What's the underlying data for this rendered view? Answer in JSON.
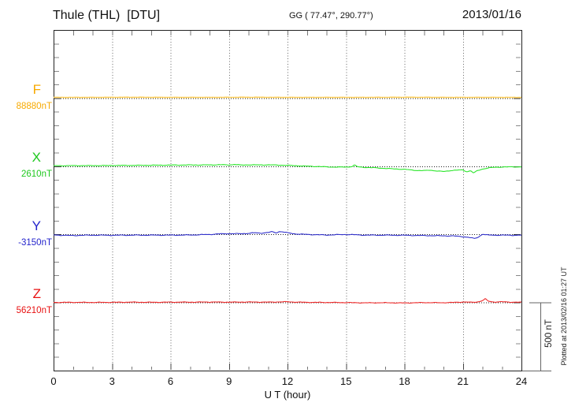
{
  "header": {
    "title": "Thule (THL)  [DTU]",
    "coords": "GG ( 77.47°, 290.77°)",
    "date": "2013/01/16"
  },
  "right_margin": {
    "scale_bar_label": "500 nT",
    "plotted_at": "Plotted at 2013/02/16 01:27 UT"
  },
  "chart_data": {
    "type": "line",
    "title": "Thule (THL) [DTU] magnetogram",
    "xlabel": "U T (hour)",
    "x_range": [
      0,
      24
    ],
    "x_tick_hours": [
      0,
      3,
      6,
      9,
      12,
      15,
      18,
      21,
      24
    ],
    "x_ticks": [
      "0",
      "3",
      "6",
      "9",
      "12",
      "15",
      "18",
      "21",
      "24"
    ],
    "minor_tick_hours": 1,
    "y_tick_nT": 100,
    "row_offset_nT": 500,
    "scale_bar_nT": 500,
    "grid": "dotted vertical lines every 3 h, dotted baseline per channel",
    "legend_position": "left",
    "series": [
      {
        "label": "F",
        "base_label": "88880nT",
        "base_nT": 88880,
        "label_color": "#f7a900",
        "line_color": "#ffd05e",
        "noise_nT": 1.2,
        "x": [
          0,
          2,
          4,
          6,
          8,
          10,
          12,
          14,
          16,
          18,
          20,
          22,
          24
        ],
        "dev_nT": [
          8,
          8,
          9,
          8,
          8,
          9,
          8,
          8,
          8,
          9,
          8,
          8,
          8
        ]
      },
      {
        "label": "X",
        "base_label": "2610nT",
        "base_nT": 2610,
        "label_color": "#1ec81e",
        "line_color": "#2ee62e",
        "noise_nT": 2.5,
        "x": [
          0,
          1,
          2,
          3,
          4,
          5,
          6,
          7,
          8,
          8.5,
          9,
          9.3,
          9.6,
          10,
          10.5,
          11,
          11.5,
          12,
          12.5,
          13,
          13.5,
          14,
          14.5,
          15,
          15.3,
          15.45,
          15.6,
          16,
          16.5,
          17,
          17.5,
          18,
          18.3,
          18.6,
          19,
          19.3,
          19.7,
          20,
          20.3,
          20.6,
          21,
          21.2,
          21.4,
          21.55,
          21.7,
          22,
          22.3,
          22.6,
          23,
          23.5,
          24
        ],
        "dev_nT": [
          6,
          7,
          7,
          8,
          9,
          10,
          11,
          12,
          12,
          14,
          12,
          16,
          11,
          13,
          12,
          13,
          11,
          9,
          6,
          3,
          1,
          -2,
          -4,
          -3,
          0,
          12,
          -2,
          -6,
          -9,
          -13,
          -17,
          -20,
          -24,
          -28,
          -30,
          -26,
          -33,
          -36,
          -30,
          -27,
          -24,
          -38,
          -30,
          -48,
          -32,
          -18,
          -10,
          -5,
          -3,
          -2,
          -2
        ]
      },
      {
        "label": "Y",
        "base_label": "-3150nT",
        "base_nT": -3150,
        "label_color": "#2424cc",
        "line_color": "#3333cc",
        "noise_nT": 3,
        "x": [
          0,
          0.5,
          1,
          1.5,
          2,
          3,
          4,
          5,
          6,
          7,
          8,
          8.5,
          9,
          9.5,
          10,
          10.3,
          10.6,
          11,
          11.2,
          11.4,
          11.6,
          11.8,
          12,
          12.3,
          12.6,
          13,
          13.5,
          14,
          15,
          16,
          17,
          18,
          19,
          20,
          20.5,
          21,
          21.3,
          21.6,
          21.8,
          22,
          22.3,
          23,
          23.5,
          24
        ],
        "dev_nT": [
          -2,
          -4,
          -6,
          -4,
          -3,
          -4,
          -3,
          -3,
          -3,
          -2,
          2,
          6,
          8,
          7,
          10,
          14,
          12,
          16,
          22,
          14,
          24,
          20,
          14,
          8,
          4,
          2,
          0,
          -2,
          2,
          -3,
          -3,
          -4,
          -6,
          -8,
          -9,
          -14,
          -20,
          -28,
          -16,
          4,
          -3,
          -3,
          -4,
          -3
        ]
      },
      {
        "label": "Z",
        "base_label": "56210nT",
        "base_nT": 56210,
        "label_color": "#e81111",
        "line_color": "#ee2b2b",
        "noise_nT": 2.5,
        "x": [
          0,
          1,
          2,
          3,
          4,
          5,
          6,
          7,
          8,
          9,
          10,
          11,
          12,
          12.5,
          13,
          14,
          15,
          16,
          17,
          18,
          19,
          20,
          20.5,
          21,
          21.5,
          21.8,
          22,
          22.15,
          22.3,
          22.6,
          23,
          23.5,
          24
        ],
        "dev_nT": [
          3,
          4,
          3,
          4,
          5,
          4,
          5,
          5,
          6,
          5,
          6,
          5,
          8,
          5,
          4,
          3,
          2,
          0,
          1,
          -1,
          2,
          1,
          3,
          6,
          4,
          8,
          16,
          30,
          12,
          6,
          8,
          5,
          4
        ]
      }
    ]
  }
}
